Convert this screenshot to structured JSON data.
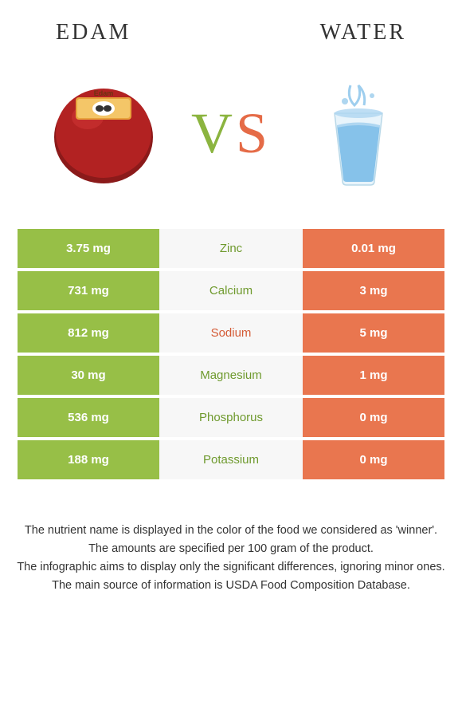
{
  "colors": {
    "left_bg": "#97BF47",
    "right_bg": "#E9764F",
    "mid_bg": "#f7f7f7",
    "nutrient_left_color": "#6F9A2E",
    "nutrient_right_color": "#D45B36",
    "text_dark": "#333333"
  },
  "header": {
    "left_title": "EDAM",
    "right_title": "WATER",
    "vs_v": "V",
    "vs_s": "S"
  },
  "images": {
    "left_alt": "edam-cheese",
    "right_alt": "glass-of-water"
  },
  "rows": [
    {
      "left": "3.75 mg",
      "nutrient": "Zinc",
      "right": "0.01 mg",
      "winner": "left"
    },
    {
      "left": "731 mg",
      "nutrient": "Calcium",
      "right": "3 mg",
      "winner": "left"
    },
    {
      "left": "812 mg",
      "nutrient": "Sodium",
      "right": "5 mg",
      "winner": "right"
    },
    {
      "left": "30 mg",
      "nutrient": "Magnesium",
      "right": "1 mg",
      "winner": "left"
    },
    {
      "left": "536 mg",
      "nutrient": "Phosphorus",
      "right": "0 mg",
      "winner": "left"
    },
    {
      "left": "188 mg",
      "nutrient": "Potassium",
      "right": "0 mg",
      "winner": "left"
    }
  ],
  "footnotes": [
    "The nutrient name is displayed in the color of the food we considered as 'winner'.",
    "The amounts are specified per 100 gram of the product.",
    "The infographic aims to display only the significant differences, ignoring minor ones.",
    "The main source of information is USDA Food Composition Database."
  ]
}
